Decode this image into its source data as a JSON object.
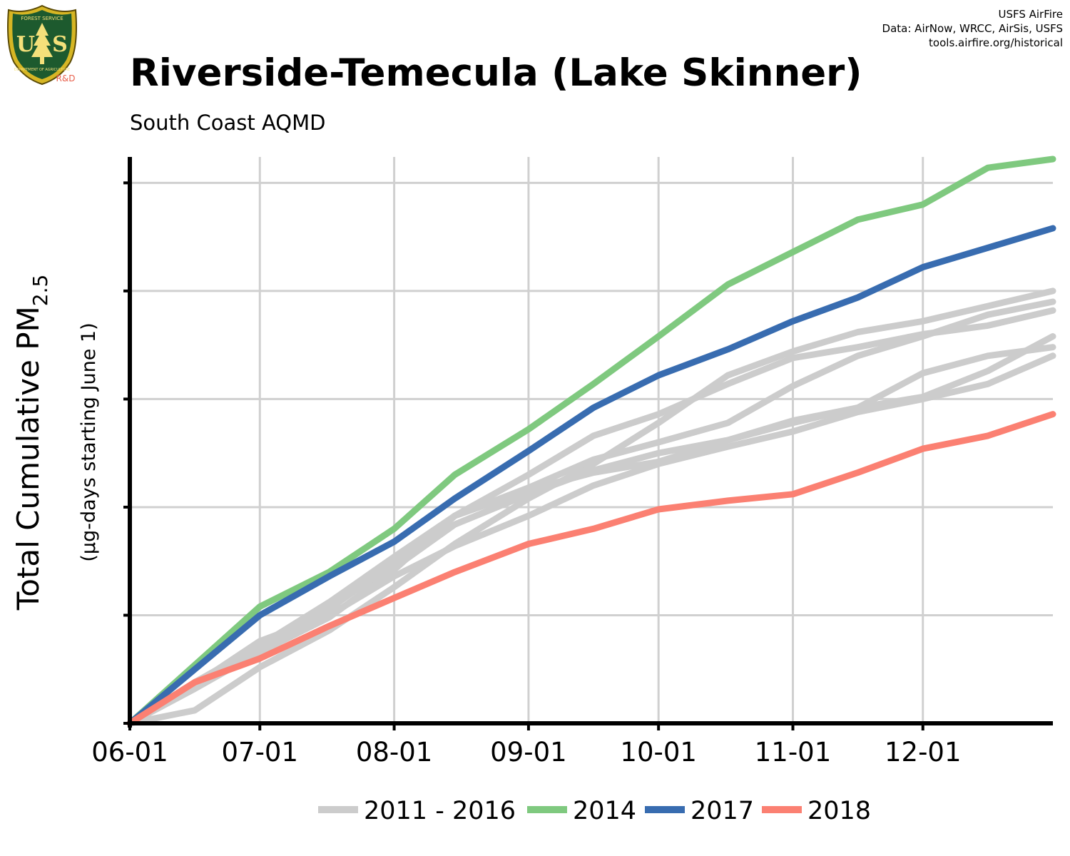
{
  "header": {
    "title": "Riverside-Temecula (Lake Skinner)",
    "subtitle": "South Coast AQMD",
    "credits": [
      "USFS AirFire",
      "Data: AirNow, WRCC, AirSis, USFS",
      "tools.airfire.org/historical"
    ],
    "logo": {
      "icon": "usfs-shield-icon",
      "text_top": "FOREST SERVICE",
      "text_bottom": "DEPARTMENT OF AGRICULTURE",
      "letters": [
        "U",
        "S"
      ],
      "tag": "R&D"
    }
  },
  "chart_data": {
    "type": "line",
    "title": "Riverside-Temecula (Lake Skinner)",
    "subtitle": "South Coast AQMD",
    "ylabel_main": "Total Cumulative PM",
    "ylabel_sub": "2.5",
    "ylabel_note": "(µg-days starting June 1)",
    "xlabel": "",
    "x_ticks": [
      "06-01",
      "07-01",
      "08-01",
      "09-01",
      "10-01",
      "11-01",
      "12-01"
    ],
    "x_tick_days": [
      0,
      30,
      61,
      92,
      122,
      153,
      183
    ],
    "xlim": [
      0,
      213
    ],
    "ylim": [
      0,
      2620
    ],
    "y_gridlines": [
      500,
      1000,
      1500,
      2000,
      2500
    ],
    "y_tick_labels_shown": false,
    "grid": true,
    "legend_position": "bottom",
    "legend": [
      {
        "label": "2011 - 2016",
        "color": "#cccccc"
      },
      {
        "label": "2014",
        "color": "#7fc97f"
      },
      {
        "label": "2017",
        "color": "#386cb0"
      },
      {
        "label": "2018",
        "color": "#fb8072"
      }
    ],
    "series": [
      {
        "name": "2011 - 2016",
        "color": "#cccccc",
        "x": [
          0,
          15,
          30,
          46,
          61,
          75,
          92,
          107,
          122,
          138,
          153,
          168,
          183,
          198,
          213
        ],
        "y": [
          0,
          60,
          260,
          430,
          630,
          830,
          1040,
          1200,
          1390,
          1610,
          1720,
          1810,
          1860,
          1930,
          2000
        ]
      },
      {
        "name": "2011 - 2016",
        "color": "#cccccc",
        "x": [
          0,
          15,
          30,
          46,
          61,
          75,
          92,
          107,
          122,
          138,
          153,
          168,
          183,
          198,
          213
        ],
        "y": [
          0,
          160,
          330,
          490,
          710,
          960,
          1150,
          1330,
          1430,
          1570,
          1690,
          1740,
          1800,
          1840,
          1910
        ]
      },
      {
        "name": "2011 - 2016",
        "color": "#cccccc",
        "x": [
          0,
          15,
          30,
          46,
          61,
          75,
          92,
          107,
          122,
          138,
          153,
          168,
          183,
          198,
          213
        ],
        "y": [
          0,
          190,
          360,
          560,
          720,
          920,
          1060,
          1170,
          1250,
          1310,
          1400,
          1460,
          1510,
          1630,
          1790
        ]
      },
      {
        "name": "2011 - 2016",
        "color": "#cccccc",
        "x": [
          0,
          15,
          30,
          46,
          61,
          75,
          92,
          107,
          122,
          138,
          153,
          168,
          183,
          198,
          213
        ],
        "y": [
          0,
          170,
          340,
          530,
          740,
          960,
          1090,
          1220,
          1300,
          1390,
          1560,
          1700,
          1790,
          1890,
          1950
        ]
      },
      {
        "name": "2011 - 2016",
        "color": "#cccccc",
        "x": [
          0,
          15,
          30,
          46,
          61,
          75,
          92,
          107,
          122,
          138,
          153,
          168,
          183,
          198,
          213
        ],
        "y": [
          0,
          180,
          380,
          500,
          680,
          820,
          960,
          1100,
          1200,
          1280,
          1350,
          1440,
          1500,
          1570,
          1700
        ]
      },
      {
        "name": "2011 - 2016",
        "color": "#cccccc",
        "x": [
          0,
          15,
          30,
          46,
          61,
          75,
          92,
          107,
          122,
          138,
          153,
          168,
          183,
          198,
          213
        ],
        "y": [
          0,
          180,
          360,
          560,
          770,
          960,
          1080,
          1160,
          1210,
          1310,
          1390,
          1460,
          1620,
          1700,
          1740
        ]
      },
      {
        "name": "2014",
        "color": "#7fc97f",
        "x": [
          0,
          15,
          30,
          46,
          61,
          75,
          92,
          107,
          122,
          138,
          153,
          168,
          183,
          198,
          213
        ],
        "y": [
          0,
          270,
          540,
          700,
          900,
          1150,
          1360,
          1570,
          1790,
          2030,
          2180,
          2330,
          2400,
          2570,
          2610
        ]
      },
      {
        "name": "2017",
        "color": "#386cb0",
        "x": [
          0,
          15,
          30,
          46,
          61,
          75,
          92,
          107,
          122,
          138,
          153,
          168,
          183,
          198,
          213
        ],
        "y": [
          0,
          250,
          500,
          680,
          840,
          1040,
          1260,
          1460,
          1610,
          1730,
          1860,
          1970,
          2110,
          2200,
          2290
        ]
      },
      {
        "name": "2018",
        "color": "#fb8072",
        "x": [
          0,
          15,
          30,
          46,
          61,
          75,
          92,
          107,
          122,
          138,
          153,
          168,
          183,
          198,
          213
        ],
        "y": [
          0,
          190,
          300,
          450,
          580,
          700,
          830,
          900,
          990,
          1030,
          1060,
          1160,
          1270,
          1330,
          1430
        ]
      }
    ]
  }
}
